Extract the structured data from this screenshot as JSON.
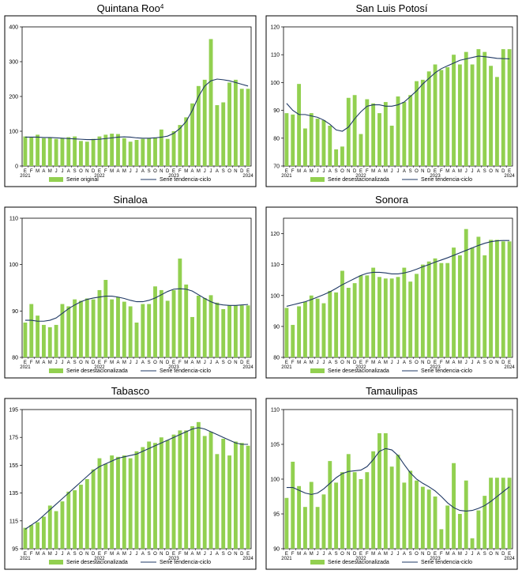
{
  "colors": {
    "bar": "#92d050",
    "trend": "#1f3864",
    "frame": "#000000"
  },
  "month_labels": [
    "E",
    "F",
    "M",
    "A",
    "M",
    "J",
    "J",
    "A",
    "S",
    "O",
    "N",
    "D",
    "E",
    "F",
    "M",
    "A",
    "M",
    "J",
    "J",
    "A",
    "S",
    "O",
    "N",
    "D",
    "E",
    "F",
    "M",
    "A",
    "M",
    "J",
    "J",
    "A",
    "S",
    "O",
    "N",
    "D",
    "E"
  ],
  "year_labels": [
    {
      "index": 0,
      "label": "2021"
    },
    {
      "index": 12,
      "label": "2022"
    },
    {
      "index": 24,
      "label": "2023"
    },
    {
      "index": 36,
      "label": "2024"
    }
  ],
  "chart_data": [
    {
      "type": "bar",
      "title": "Quintana Roo",
      "title_sup": "4",
      "ylim": [
        0,
        400
      ],
      "yticks": [
        0,
        100,
        200,
        300,
        400
      ],
      "legend": {
        "bar": "Serie original",
        "line": "Serie tendencia-ciclo",
        "placement": "bottom"
      },
      "series": [
        {
          "kind": "bar",
          "values": [
            85,
            82,
            90,
            80,
            82,
            78,
            80,
            83,
            85,
            72,
            70,
            78,
            85,
            90,
            93,
            92,
            80,
            70,
            75,
            78,
            80,
            82,
            105,
            78,
            100,
            118,
            140,
            180,
            230,
            248,
            365,
            175,
            183,
            240,
            248,
            222,
            222
          ]
        },
        {
          "kind": "line",
          "values": [
            83,
            83,
            83,
            82,
            82,
            81,
            80,
            79,
            78,
            77,
            76,
            76,
            77,
            79,
            81,
            83,
            84,
            83,
            81,
            80,
            80,
            81,
            83,
            86,
            94,
            108,
            128,
            160,
            200,
            230,
            245,
            250,
            248,
            245,
            240,
            235,
            230
          ]
        }
      ]
    },
    {
      "type": "bar",
      "title": "San Luis Potosí",
      "ylim": [
        70,
        120
      ],
      "yticks": [
        70,
        80,
        90,
        100,
        110,
        120
      ],
      "legend": {
        "bar": "Serie desestacionalizada",
        "line": "Serie tendencia-ciclo",
        "placement": "bottom"
      },
      "series": [
        {
          "kind": "bar",
          "values": [
            89,
            88.5,
            99.5,
            83.5,
            89,
            87,
            86.5,
            84.5,
            76,
            77,
            94.5,
            95.5,
            81.5,
            94,
            92.5,
            89,
            93,
            84.5,
            95,
            93,
            95.5,
            100.5,
            101,
            104,
            106.5,
            104.5,
            105.5,
            110,
            106.5,
            111,
            106.5,
            112,
            111,
            106,
            102,
            112,
            112
          ]
        },
        {
          "kind": "line",
          "values": [
            92.5,
            90,
            88.5,
            88.5,
            88,
            87.5,
            86.5,
            85,
            83,
            82.5,
            84,
            87,
            89.5,
            91.5,
            92,
            92,
            91.5,
            91.5,
            92,
            93,
            95,
            97,
            99.5,
            101.5,
            103.5,
            105,
            106,
            107,
            108,
            108.5,
            109,
            109.5,
            109.3,
            109,
            108.7,
            108.6,
            108.5
          ]
        }
      ]
    },
    {
      "type": "bar",
      "title": "Sinaloa",
      "ylim": [
        80,
        110
      ],
      "yticks": [
        80,
        90,
        100,
        110
      ],
      "legend": {
        "bar": "Serie desestacionalizada",
        "line": "Serie tendencia-ciclo",
        "placement": "bottom"
      },
      "series": [
        {
          "kind": "bar",
          "values": [
            87.5,
            91.5,
            89,
            87,
            86.5,
            87,
            91.5,
            91,
            92.5,
            92.2,
            92.7,
            92.5,
            94.5,
            96.7,
            92.5,
            93,
            92,
            91,
            87.5,
            91.5,
            91.5,
            95.3,
            94.5,
            92.2,
            94.5,
            101.3,
            95.7,
            88.7,
            93.3,
            92.8,
            93.4,
            91.8,
            90.4,
            91.2,
            91.2,
            91.2,
            91.2
          ]
        },
        {
          "kind": "line",
          "values": [
            88,
            88,
            87.8,
            87.8,
            88,
            88.5,
            89.5,
            90.5,
            91.3,
            92,
            92.5,
            92.8,
            93,
            93.2,
            93.2,
            93,
            92.7,
            92.3,
            92,
            92,
            92.3,
            92.8,
            93.5,
            94.2,
            94.7,
            94.8,
            94.7,
            94.3,
            93.5,
            92.7,
            92,
            91.5,
            91.3,
            91.2,
            91.2,
            91.3,
            91.4
          ]
        }
      ]
    },
    {
      "type": "bar",
      "title": "Sonora",
      "ylim": [
        80,
        125
      ],
      "yticks": [
        80,
        90,
        100,
        110,
        120
      ],
      "legend": {
        "bar": "Serie desestacionalizada",
        "line": "Serie tendencia-ciclo",
        "placement": "bottom"
      },
      "series": [
        {
          "kind": "bar",
          "values": [
            96,
            90.5,
            96.5,
            98,
            100,
            99,
            97.5,
            101.5,
            101,
            108,
            102.5,
            104,
            106.5,
            106.5,
            109,
            106,
            105.5,
            105.5,
            106,
            109,
            104.5,
            107,
            110,
            111,
            112,
            110.5,
            110.5,
            115.5,
            113,
            121.5,
            115.5,
            119,
            113,
            118,
            118,
            117.5,
            117.5
          ]
        },
        {
          "kind": "line",
          "values": [
            96.5,
            97,
            97.5,
            98,
            98.7,
            99.5,
            100.3,
            101.2,
            102.3,
            103.5,
            104.5,
            105.5,
            106.5,
            107.2,
            107.5,
            107.5,
            107.3,
            107,
            107,
            107.3,
            107.8,
            108.5,
            109.3,
            110,
            110.8,
            111.5,
            112.2,
            113,
            113.8,
            114.6,
            115.4,
            116.2,
            116.9,
            117.4,
            117.7,
            117.8,
            117.8
          ]
        }
      ]
    },
    {
      "type": "bar",
      "title": "Tabasco",
      "ylim": [
        95,
        195
      ],
      "yticks": [
        95,
        115,
        135,
        155,
        175,
        195
      ],
      "legend": {
        "bar": "Serie desestacionalizada",
        "line": "Serie tendencia-ciclo",
        "placement": "bottom"
      },
      "series": [
        {
          "kind": "bar",
          "values": [
            110,
            112,
            114,
            118,
            126,
            122,
            129,
            136,
            137,
            141,
            145,
            152,
            160,
            156,
            162,
            161,
            162,
            160,
            165,
            168,
            172,
            171,
            175,
            173,
            177,
            180,
            180,
            183,
            186,
            176,
            179,
            163,
            174,
            162,
            172,
            171,
            169
          ]
        },
        {
          "kind": "line",
          "values": [
            109,
            112,
            115,
            119,
            123,
            127,
            131,
            135,
            139,
            143,
            147,
            151,
            154,
            156,
            158,
            160,
            161,
            162,
            163,
            165,
            167,
            169,
            171,
            173,
            175,
            177,
            179,
            181,
            182,
            181,
            179,
            177,
            175,
            173,
            171,
            170,
            170
          ]
        }
      ]
    },
    {
      "type": "bar",
      "title": "Tamaulipas",
      "ylim": [
        90,
        110
      ],
      "yticks": [
        90,
        95,
        100,
        105,
        110
      ],
      "legend": {
        "bar": "Serie desestacionalizada",
        "line": "Serie tendencia-ciclo",
        "placement": "bottom"
      },
      "series": [
        {
          "kind": "bar",
          "values": [
            97.3,
            102.5,
            99,
            96,
            99.6,
            96,
            97.8,
            102.6,
            99.5,
            101,
            103.6,
            101,
            100,
            101,
            104,
            106.6,
            106.6,
            101.8,
            103.5,
            99.5,
            101.2,
            99.8,
            98.9,
            98.5,
            97.5,
            92.8,
            96.2,
            102.3,
            95,
            99.8,
            91.5,
            95.5,
            97.6,
            100.2,
            100.2,
            100.2,
            100.2
          ]
        },
        {
          "kind": "line",
          "values": [
            98.8,
            98.8,
            98.4,
            98,
            97.8,
            98,
            98.6,
            99.4,
            100.2,
            100.8,
            101.1,
            101.2,
            101.3,
            101.8,
            102.8,
            104,
            104.4,
            104.2,
            103.4,
            102.1,
            100.9,
            100,
            99.4,
            98.9,
            98.3,
            97.5,
            96.6,
            95.9,
            95.5,
            95.4,
            95.5,
            95.8,
            96.2,
            96.8,
            97.5,
            98.2,
            98.9
          ]
        }
      ]
    }
  ]
}
